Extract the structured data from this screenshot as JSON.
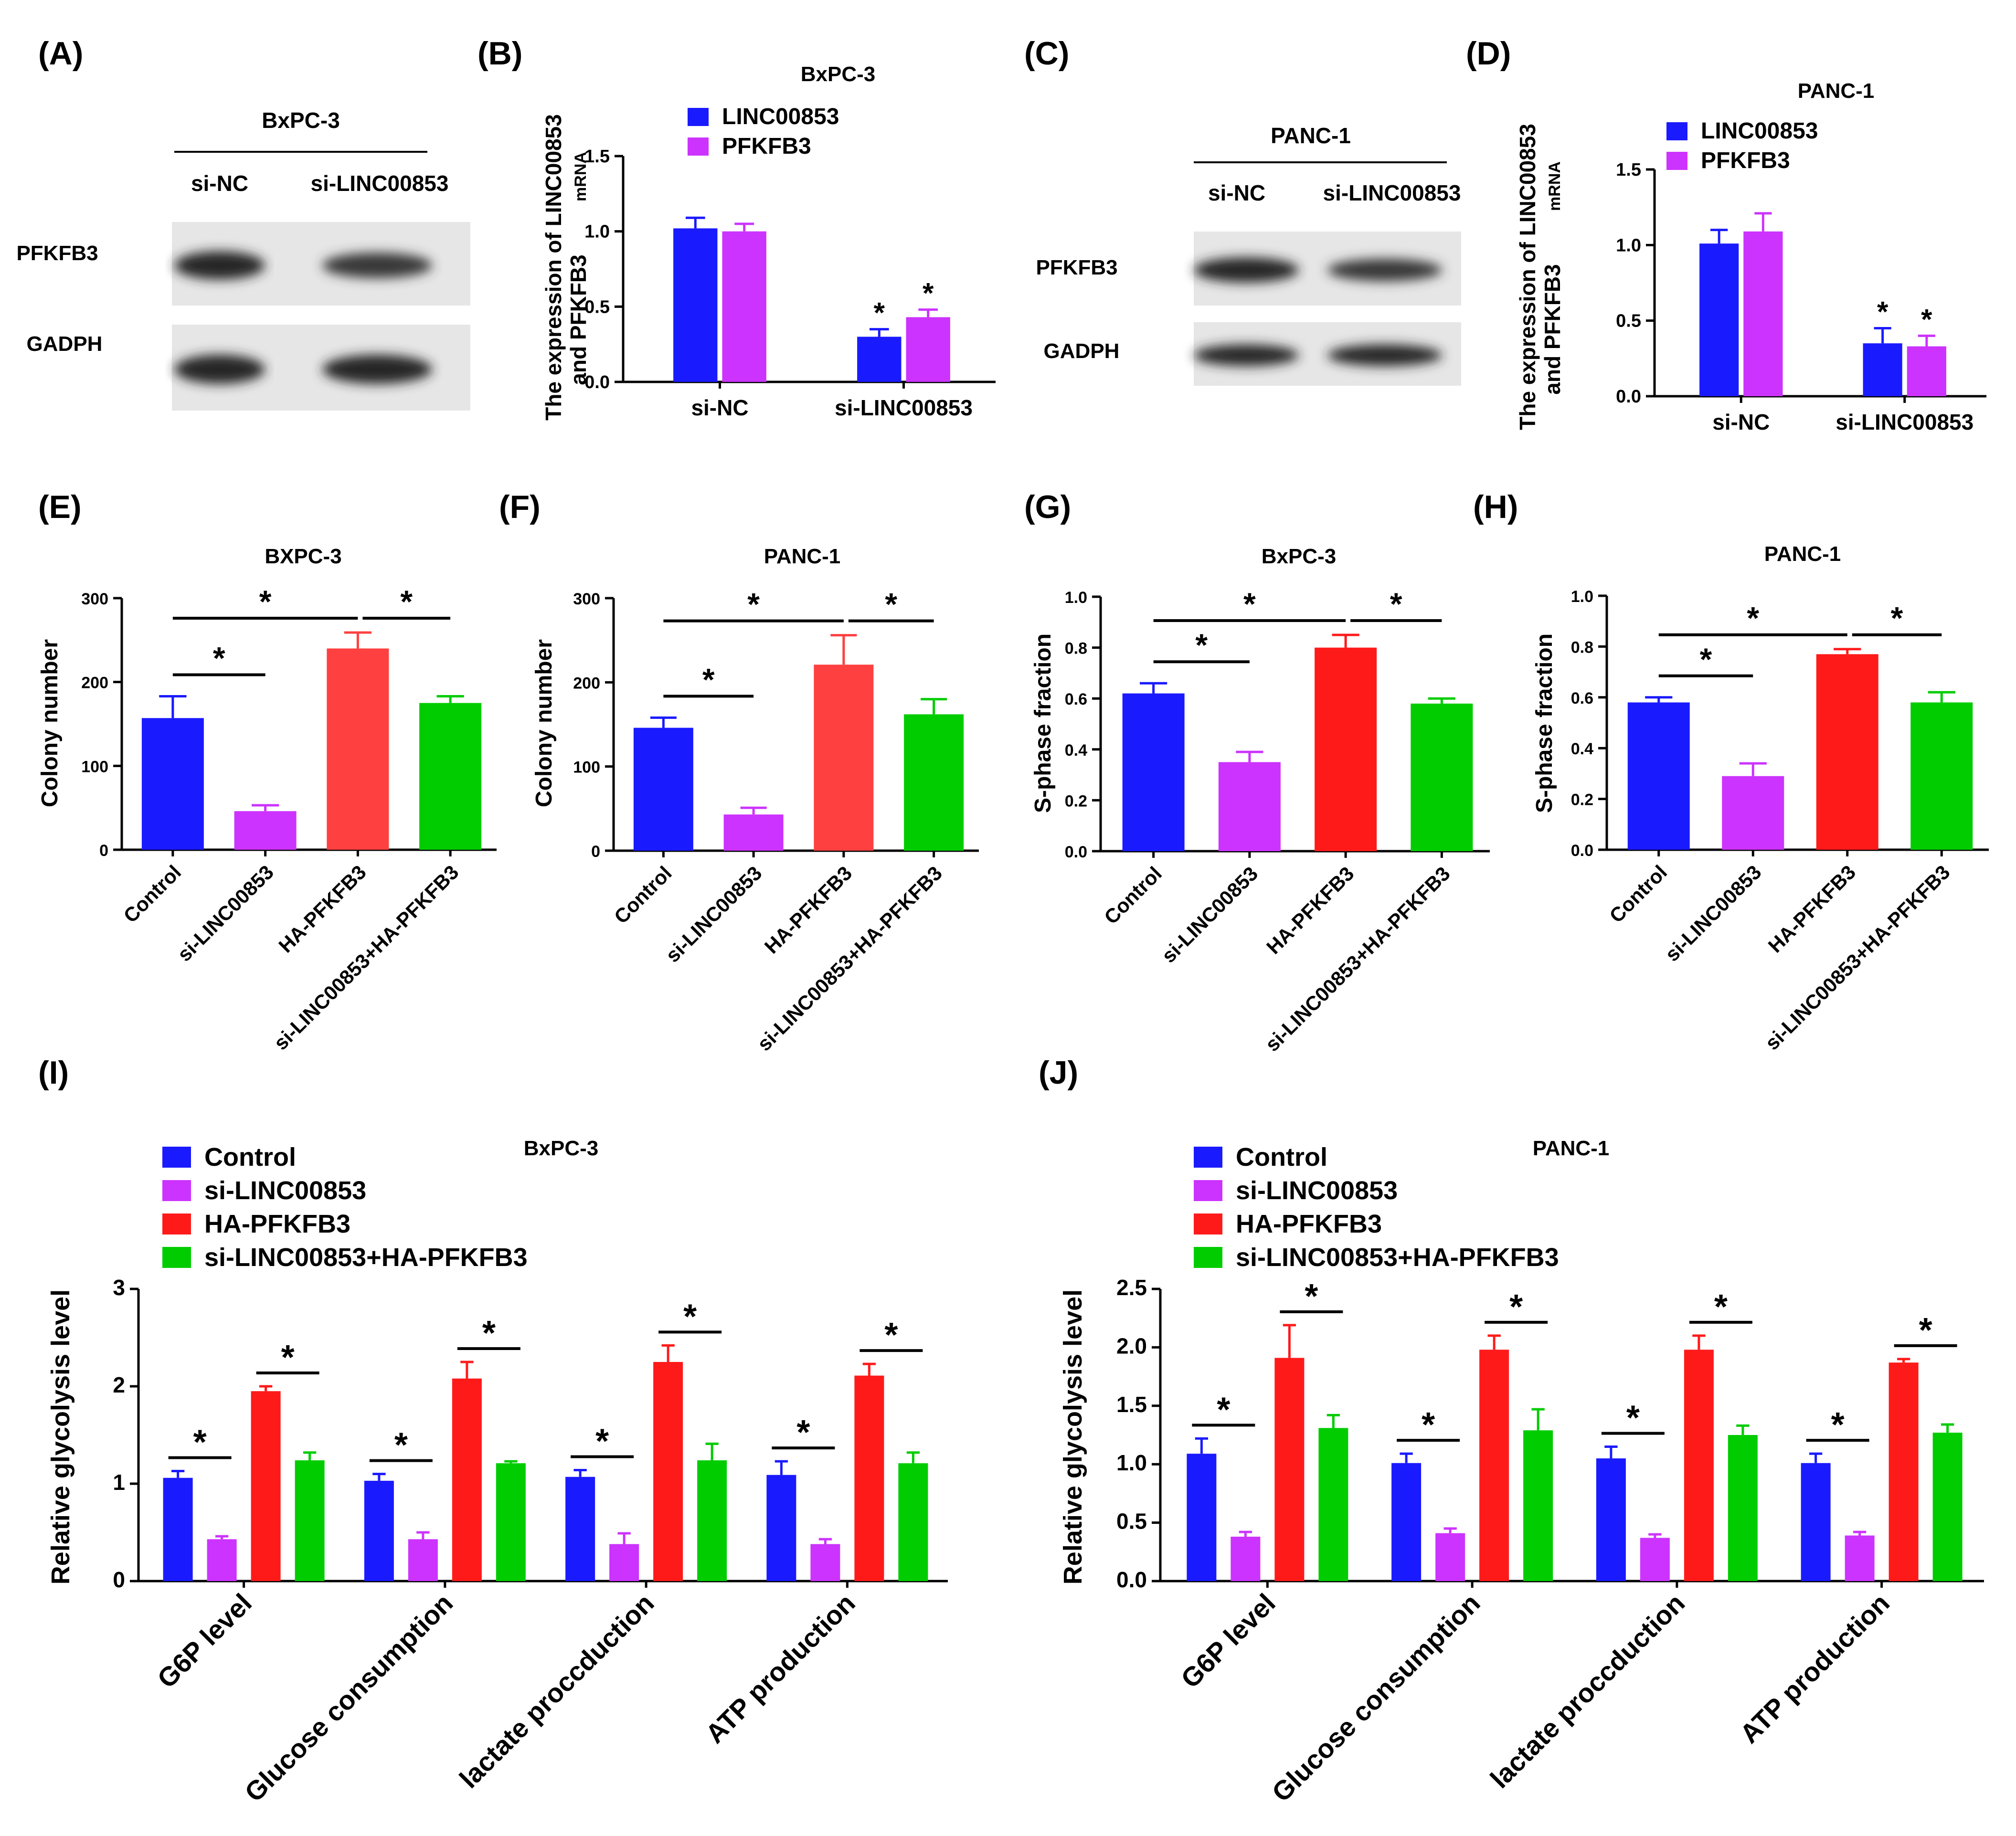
{
  "colors": {
    "blue": "#1a1aff",
    "magenta": "#cc33ff",
    "red_light": "#ff4040",
    "red": "#ff1a1a",
    "green": "#00cc00"
  },
  "panel_letters": [
    "(A)",
    "(B)",
    "(C)",
    "(D)",
    "(E)",
    "(F)",
    "(G)",
    "(H)",
    "(I)",
    "(J)"
  ],
  "western_blots": [
    {
      "cell_line": "BxPC-3",
      "lanes": [
        "si-NC",
        "si-LINC00853"
      ],
      "rows": [
        {
          "label": "PFKFB3",
          "band_intensity": [
            1.0,
            0.75
          ]
        },
        {
          "label": "GADPH",
          "band_intensity": [
            1.0,
            1.0
          ]
        }
      ]
    },
    {
      "cell_line": "PANC-1",
      "lanes": [
        "si-NC",
        "si-LINC00853"
      ],
      "rows": [
        {
          "label": "PFKFB3",
          "band_intensity": [
            1.0,
            0.75
          ]
        },
        {
          "label": "GADPH",
          "band_intensity": [
            1.0,
            1.0
          ]
        }
      ]
    }
  ],
  "chart_data": [
    {
      "id": "B",
      "type": "bar",
      "title": "BxPC-3",
      "ylabel_lines": [
        "The expression of LINC00853",
        "and PFKFB3"
      ],
      "ylabel_suffix": "mRNA",
      "xlabel": "",
      "categories": [
        "si-NC",
        "si-LINC00853"
      ],
      "series": [
        {
          "name": "LINC00853",
          "color": "#1a1aff",
          "values": [
            1.02,
            0.3
          ],
          "errors": [
            0.07,
            0.05
          ]
        },
        {
          "name": "PFKFB3",
          "color": "#cc33ff",
          "values": [
            1.0,
            0.43
          ],
          "errors": [
            0.05,
            0.05
          ]
        }
      ],
      "ylim": [
        0,
        1.5
      ],
      "yticks": [
        "0.0",
        "0.5",
        "1.0",
        "1.5"
      ],
      "star_label": "*",
      "stars": [
        [
          1,
          0
        ],
        [
          1,
          1
        ]
      ]
    },
    {
      "id": "D",
      "type": "bar",
      "title": "PANC-1",
      "ylabel_lines": [
        "The expression of LINC00853",
        "and PFKFB3"
      ],
      "ylabel_suffix": "mRNA",
      "xlabel": "",
      "categories": [
        "si-NC",
        "si-LINC00853"
      ],
      "series": [
        {
          "name": "LINC00853",
          "color": "#1a1aff",
          "values": [
            1.01,
            0.35
          ],
          "errors": [
            0.09,
            0.1
          ]
        },
        {
          "name": "PFKFB3",
          "color": "#cc33ff",
          "values": [
            1.09,
            0.33
          ],
          "errors": [
            0.12,
            0.07
          ]
        }
      ],
      "ylim": [
        0,
        1.5
      ],
      "yticks": [
        "0.0",
        "0.5",
        "1.0",
        "1.5"
      ],
      "star_label": "*",
      "stars": [
        [
          1,
          0
        ],
        [
          1,
          1
        ]
      ]
    },
    {
      "id": "E",
      "type": "bar",
      "title": "BXPC-3",
      "ylabel": "Colony number",
      "categories": [
        "Control",
        "si-LINC00853",
        "HA-PFKFB3",
        "si-LINC00853+HA-PFKFB3"
      ],
      "values": [
        157,
        46,
        240,
        175
      ],
      "errors": [
        26,
        7,
        19,
        8
      ],
      "colors": [
        "#1a1aff",
        "#cc33ff",
        "#ff4040",
        "#00cc00"
      ],
      "ylim": [
        0,
        300
      ],
      "yticks": [
        "0",
        "100",
        "200",
        "300"
      ],
      "star_label": "*",
      "brackets": [
        [
          0,
          1,
          0
        ],
        [
          0,
          2,
          1
        ],
        [
          2,
          3,
          1
        ]
      ]
    },
    {
      "id": "F",
      "type": "bar",
      "title": "PANC-1",
      "ylabel": "Colony number",
      "categories": [
        "Control",
        "si-LINC00853",
        "HA-PFKFB3",
        "si-LINC00853+HA-PFKFB3"
      ],
      "values": [
        146,
        43,
        221,
        162
      ],
      "errors": [
        12,
        8,
        35,
        18
      ],
      "colors": [
        "#1a1aff",
        "#cc33ff",
        "#ff4040",
        "#00cc00"
      ],
      "ylim": [
        0,
        300
      ],
      "yticks": [
        "0",
        "100",
        "200",
        "300"
      ],
      "star_label": "*",
      "brackets": [
        [
          0,
          1,
          0
        ],
        [
          0,
          2,
          1
        ],
        [
          2,
          3,
          1
        ]
      ]
    },
    {
      "id": "G",
      "type": "bar",
      "title": "BxPC-3",
      "ylabel": "S-phase  fraction",
      "categories": [
        "Control",
        "si-LINC00853",
        "HA-PFKFB3",
        "si-LINC00853+HA-PFKFB3"
      ],
      "values": [
        0.62,
        0.35,
        0.8,
        0.58
      ],
      "errors": [
        0.04,
        0.04,
        0.05,
        0.02
      ],
      "colors": [
        "#1a1aff",
        "#cc33ff",
        "#ff1a1a",
        "#00cc00"
      ],
      "ylim": [
        0,
        1.0
      ],
      "yticks": [
        "0.0",
        "0.2",
        "0.4",
        "0.6",
        "0.8",
        "1.0"
      ],
      "star_label": "*",
      "brackets": [
        [
          0,
          1,
          0
        ],
        [
          0,
          2,
          1
        ],
        [
          2,
          3,
          1
        ]
      ]
    },
    {
      "id": "H",
      "type": "bar",
      "title": "PANC-1",
      "ylabel": "S-phase  fraction",
      "categories": [
        "Control",
        "si-LINC00853",
        "HA-PFKFB3",
        "si-LINC00853+HA-PFKFB3"
      ],
      "values": [
        0.58,
        0.29,
        0.77,
        0.58
      ],
      "errors": [
        0.02,
        0.05,
        0.02,
        0.04
      ],
      "colors": [
        "#1a1aff",
        "#cc33ff",
        "#ff1a1a",
        "#00cc00"
      ],
      "ylim": [
        0,
        1.0
      ],
      "yticks": [
        "0.0",
        "0.2",
        "0.4",
        "0.6",
        "0.8",
        "1.0"
      ],
      "star_label": "*",
      "brackets": [
        [
          0,
          1,
          0
        ],
        [
          0,
          2,
          1
        ],
        [
          2,
          3,
          1
        ]
      ]
    },
    {
      "id": "I",
      "type": "bar",
      "title": "BxPC-3",
      "ylabel": "Relative glycolysis level",
      "categories": [
        "G6P level",
        "Glucose consumption",
        "lactate proccduction",
        "ATP production"
      ],
      "series": [
        {
          "name": "Control",
          "color": "#1a1aff",
          "values": [
            1.06,
            1.03,
            1.07,
            1.09
          ],
          "errors": [
            0.07,
            0.07,
            0.07,
            0.14
          ]
        },
        {
          "name": "si-LINC00853",
          "color": "#cc33ff",
          "values": [
            0.43,
            0.43,
            0.38,
            0.38
          ],
          "errors": [
            0.03,
            0.07,
            0.11,
            0.05
          ]
        },
        {
          "name": "HA-PFKFB3",
          "color": "#ff1a1a",
          "values": [
            1.95,
            2.08,
            2.25,
            2.11
          ],
          "errors": [
            0.05,
            0.17,
            0.17,
            0.12
          ]
        },
        {
          "name": "si-LINC00853+HA-PFKFB3",
          "color": "#00cc00",
          "values": [
            1.24,
            1.21,
            1.24,
            1.21
          ],
          "errors": [
            0.08,
            0.02,
            0.17,
            0.11
          ]
        }
      ],
      "ylim": [
        0,
        3
      ],
      "yticks": [
        "0",
        "1",
        "2",
        "3"
      ],
      "star_label": "*",
      "pair_brackets": [
        [
          0,
          1
        ],
        [
          2,
          3
        ]
      ]
    },
    {
      "id": "J",
      "type": "bar",
      "title": "PANC-1",
      "ylabel": "Relative glycolysis level",
      "categories": [
        "G6P level",
        "Glucose consumption",
        "lactate proccduction",
        "ATP production"
      ],
      "series": [
        {
          "name": "Control",
          "color": "#1a1aff",
          "values": [
            1.09,
            1.01,
            1.05,
            1.01
          ],
          "errors": [
            0.13,
            0.08,
            0.1,
            0.08
          ]
        },
        {
          "name": "si-LINC00853",
          "color": "#cc33ff",
          "values": [
            0.38,
            0.41,
            0.37,
            0.39
          ],
          "errors": [
            0.04,
            0.04,
            0.03,
            0.03
          ]
        },
        {
          "name": "HA-PFKFB3",
          "color": "#ff1a1a",
          "values": [
            1.91,
            1.98,
            1.98,
            1.87
          ],
          "errors": [
            0.28,
            0.12,
            0.12,
            0.03
          ]
        },
        {
          "name": "si-LINC00853+HA-PFKFB3",
          "color": "#00cc00",
          "values": [
            1.31,
            1.29,
            1.25,
            1.27
          ],
          "errors": [
            0.11,
            0.18,
            0.08,
            0.07
          ]
        }
      ],
      "ylim": [
        0,
        2.5
      ],
      "yticks": [
        "0.0",
        "0.5",
        "1.0",
        "1.5",
        "2.0",
        "2.5"
      ],
      "star_label": "*",
      "pair_brackets": [
        [
          0,
          1
        ],
        [
          2,
          3
        ]
      ]
    }
  ]
}
